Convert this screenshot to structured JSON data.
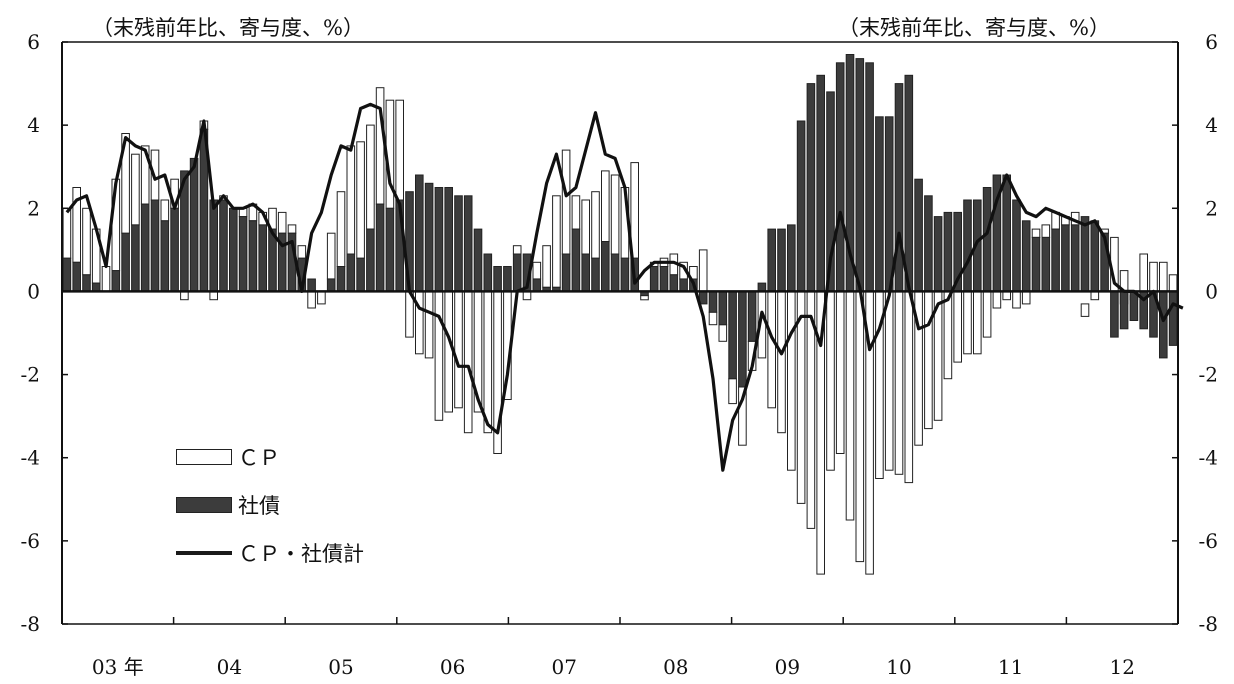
{
  "chart_data": {
    "type": "bar",
    "y_unit_left": "（末残前年比、寄与度、%）",
    "y_unit_right": "（末残前年比、寄与度、%）",
    "ylim": [
      -8,
      6
    ],
    "yticks": [
      6,
      4,
      2,
      0,
      -2,
      -4,
      -6,
      -8
    ],
    "year_labels": [
      "03 年",
      "04",
      "05",
      "06",
      "07",
      "08",
      "09",
      "10",
      "11",
      "12"
    ],
    "bar_mode": "stacked",
    "grid": false,
    "legend_position": "lower-left",
    "colors": {
      "cp": "#ffffff",
      "shasai": "#3c3c3c",
      "total": "#111111"
    },
    "series": [
      {
        "name": "ＣＰ",
        "kind": "bar",
        "values": [
          1.2,
          1.8,
          1.6,
          1.3,
          0.6,
          2.2,
          2.4,
          1.7,
          1.4,
          1.2,
          0.5,
          0.7,
          -0.2,
          0.0,
          0.2,
          -0.2,
          0.1,
          0.0,
          0.2,
          0.4,
          0.3,
          0.5,
          0.5,
          0.2,
          0.3,
          -0.4,
          -0.3,
          1.1,
          1.8,
          2.6,
          2.8,
          2.5,
          2.8,
          2.6,
          2.4,
          -1.1,
          -1.5,
          -1.6,
          -3.1,
          -2.9,
          -2.8,
          -3.4,
          -2.9,
          -3.4,
          -3.9,
          -2.6,
          0.2,
          -0.2,
          0.4,
          1.0,
          2.2,
          2.5,
          0.8,
          1.3,
          1.6,
          1.7,
          1.9,
          1.7,
          2.3,
          -0.1,
          0.1,
          0.2,
          0.5,
          0.4,
          0.3,
          1.0,
          -0.3,
          -0.4,
          -0.6,
          -1.4,
          -0.7,
          -1.6,
          -2.8,
          -3.4,
          -4.3,
          -5.1,
          -5.7,
          -6.8,
          -4.3,
          -3.9,
          -5.5,
          -6.5,
          -6.8,
          -4.5,
          -4.3,
          -4.4,
          -4.6,
          -3.7,
          -3.3,
          -3.1,
          -2.1,
          -1.7,
          -1.5,
          -1.5,
          -1.1,
          -0.4,
          -0.2,
          -0.4,
          -0.3,
          0.2,
          0.3,
          0.4,
          0.2,
          0.3,
          -0.3,
          -0.2,
          0.1,
          1.3,
          0.8,
          0.1,
          0.9,
          0.7,
          0.7,
          0.4
        ],
        "stack_start": [
          0,
          0,
          0,
          0,
          0,
          0,
          0,
          0,
          0,
          0,
          0,
          0,
          0,
          0,
          0,
          0,
          0,
          0,
          0,
          0,
          0,
          0,
          0,
          0,
          0,
          0,
          0,
          0,
          0,
          0,
          0,
          0,
          0,
          0,
          0,
          0,
          0,
          0,
          0,
          0,
          0,
          0,
          0,
          0,
          0,
          0,
          0,
          0,
          0,
          0,
          0,
          0,
          0,
          0,
          0,
          0,
          0,
          0,
          0,
          0,
          0,
          0,
          0,
          0,
          0,
          0,
          0,
          0,
          0,
          0,
          0,
          0,
          0,
          0,
          0,
          0,
          0,
          0,
          0,
          0,
          0,
          0,
          0,
          0,
          0,
          0,
          0,
          0,
          0,
          0,
          0,
          0,
          0,
          0,
          0,
          0,
          0,
          0,
          0,
          0,
          0,
          0,
          0,
          0,
          -0.3,
          0,
          0,
          0,
          -0.3,
          -0.2,
          0,
          0,
          0,
          0
        ]
      },
      {
        "name": "社債",
        "kind": "bar",
        "values": [
          0.8,
          0.7,
          0.4,
          0.2,
          0.0,
          0.5,
          1.4,
          1.6,
          2.1,
          2.2,
          1.7,
          2.0,
          2.9,
          3.2,
          3.9,
          2.2,
          2.2,
          2.0,
          1.8,
          1.7,
          1.6,
          1.5,
          1.4,
          1.4,
          0.8,
          0.3,
          0.0,
          0.3,
          0.6,
          0.9,
          0.8,
          1.5,
          2.1,
          2.0,
          2.2,
          2.4,
          2.8,
          2.6,
          2.5,
          2.5,
          2.3,
          2.3,
          1.5,
          0.9,
          0.6,
          0.6,
          0.9,
          0.9,
          0.3,
          0.1,
          0.1,
          0.9,
          1.5,
          0.9,
          0.8,
          1.2,
          0.9,
          0.8,
          0.8,
          -0.1,
          0.6,
          0.6,
          0.4,
          0.3,
          0.3,
          -0.3,
          -0.5,
          -0.8,
          -2.1,
          -2.3,
          -1.2,
          0.2,
          1.5,
          1.5,
          1.6,
          4.1,
          5.0,
          5.2,
          4.8,
          5.5,
          5.7,
          5.6,
          5.5,
          4.2,
          4.2,
          5.0,
          5.2,
          2.7,
          2.3,
          1.8,
          1.9,
          1.9,
          2.2,
          2.2,
          2.5,
          2.8,
          2.8,
          2.2,
          1.7,
          1.3,
          1.3,
          1.5,
          1.6,
          1.6,
          1.8,
          1.7,
          1.4,
          -1.1,
          -0.9,
          -0.7,
          -0.9,
          -1.1,
          -1.6,
          -1.3,
          -0.8
        ]
      },
      {
        "name": "ＣＰ・社債計",
        "kind": "line",
        "values": [
          1.9,
          2.2,
          2.3,
          1.5,
          0.6,
          2.6,
          3.7,
          3.5,
          3.4,
          2.7,
          2.8,
          2.0,
          2.7,
          3.0,
          4.1,
          2.0,
          2.3,
          2.0,
          2.0,
          2.1,
          1.9,
          1.4,
          1.1,
          1.2,
          0.0,
          1.4,
          1.9,
          2.8,
          3.5,
          3.4,
          4.4,
          4.5,
          4.4,
          2.6,
          2.1,
          0.0,
          -0.4,
          -0.5,
          -0.6,
          -1.1,
          -1.8,
          -1.8,
          -2.6,
          -3.2,
          -3.4,
          -2.0,
          0.0,
          0.1,
          1.4,
          2.6,
          3.3,
          2.3,
          2.5,
          3.4,
          4.3,
          3.3,
          3.2,
          2.5,
          0.2,
          0.5,
          0.7,
          0.7,
          0.7,
          0.6,
          0.2,
          -0.6,
          -2.1,
          -4.3,
          -3.1,
          -2.6,
          -1.8,
          -0.5,
          -1.1,
          -1.5,
          -1.0,
          -0.6,
          -0.6,
          -1.3,
          0.8,
          1.9,
          0.9,
          0.1,
          -1.4,
          -0.9,
          -0.1,
          1.4,
          0.1,
          -0.9,
          -0.8,
          -0.3,
          -0.2,
          0.3,
          0.7,
          1.2,
          1.4,
          2.2,
          2.8,
          2.3,
          1.9,
          1.8,
          2.0,
          1.9,
          1.8,
          1.7,
          1.6,
          1.7,
          1.3,
          0.2,
          0.0,
          0.0,
          -0.2,
          0.0,
          -0.7,
          -0.3,
          -0.4
        ]
      }
    ]
  }
}
